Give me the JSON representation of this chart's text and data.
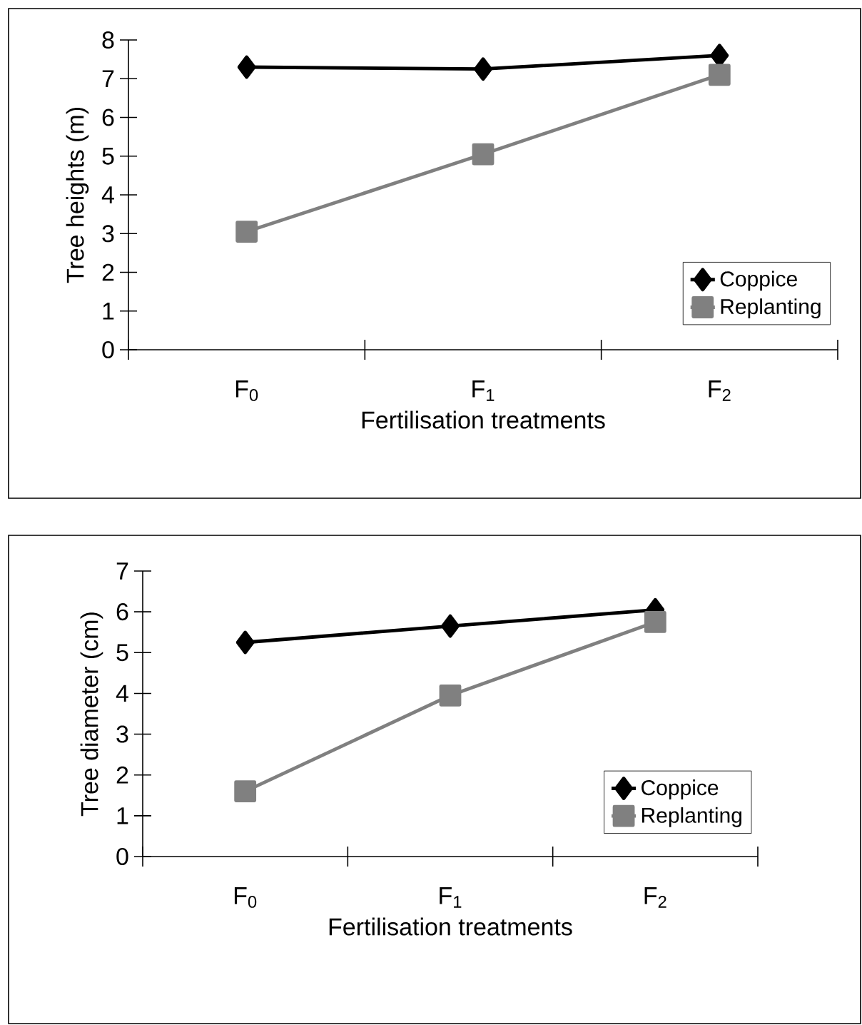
{
  "chart_data": [
    {
      "type": "line",
      "categories": [
        "F$_{0}$",
        "F$_{1}$",
        "F$_{2}$"
      ],
      "xlabel": "Fertilisation treatments",
      "ylabel": "Tree heights (m)",
      "ylim": [
        0,
        8
      ],
      "yticks": [
        0,
        1,
        2,
        3,
        4,
        5,
        6,
        7,
        8
      ],
      "legend": "bottom right",
      "grid": false,
      "series": [
        {
          "name": "Coppice",
          "color": "#000000",
          "marker": "diamond",
          "values": [
            7.3,
            7.25,
            7.6
          ]
        },
        {
          "name": "Replanting",
          "color": "#808080",
          "marker": "square",
          "values": [
            3.05,
            5.05,
            7.1
          ]
        }
      ]
    },
    {
      "type": "line",
      "categories": [
        "F$_{0}$",
        "F$_{1}$",
        "F$_{2}$"
      ],
      "xlabel": "Fertilisation treatments",
      "ylabel": "Tree diameter (cm)",
      "ylim": [
        0,
        7
      ],
      "yticks": [
        0,
        1,
        2,
        3,
        4,
        5,
        6,
        7
      ],
      "legend": "bottom right",
      "grid": false,
      "series": [
        {
          "name": "Coppice",
          "color": "#000000",
          "marker": "diamond",
          "values": [
            5.25,
            5.65,
            6.05
          ]
        },
        {
          "name": "Replanting",
          "color": "#808080",
          "marker": "square",
          "values": [
            1.6,
            3.95,
            5.75
          ]
        }
      ]
    }
  ]
}
